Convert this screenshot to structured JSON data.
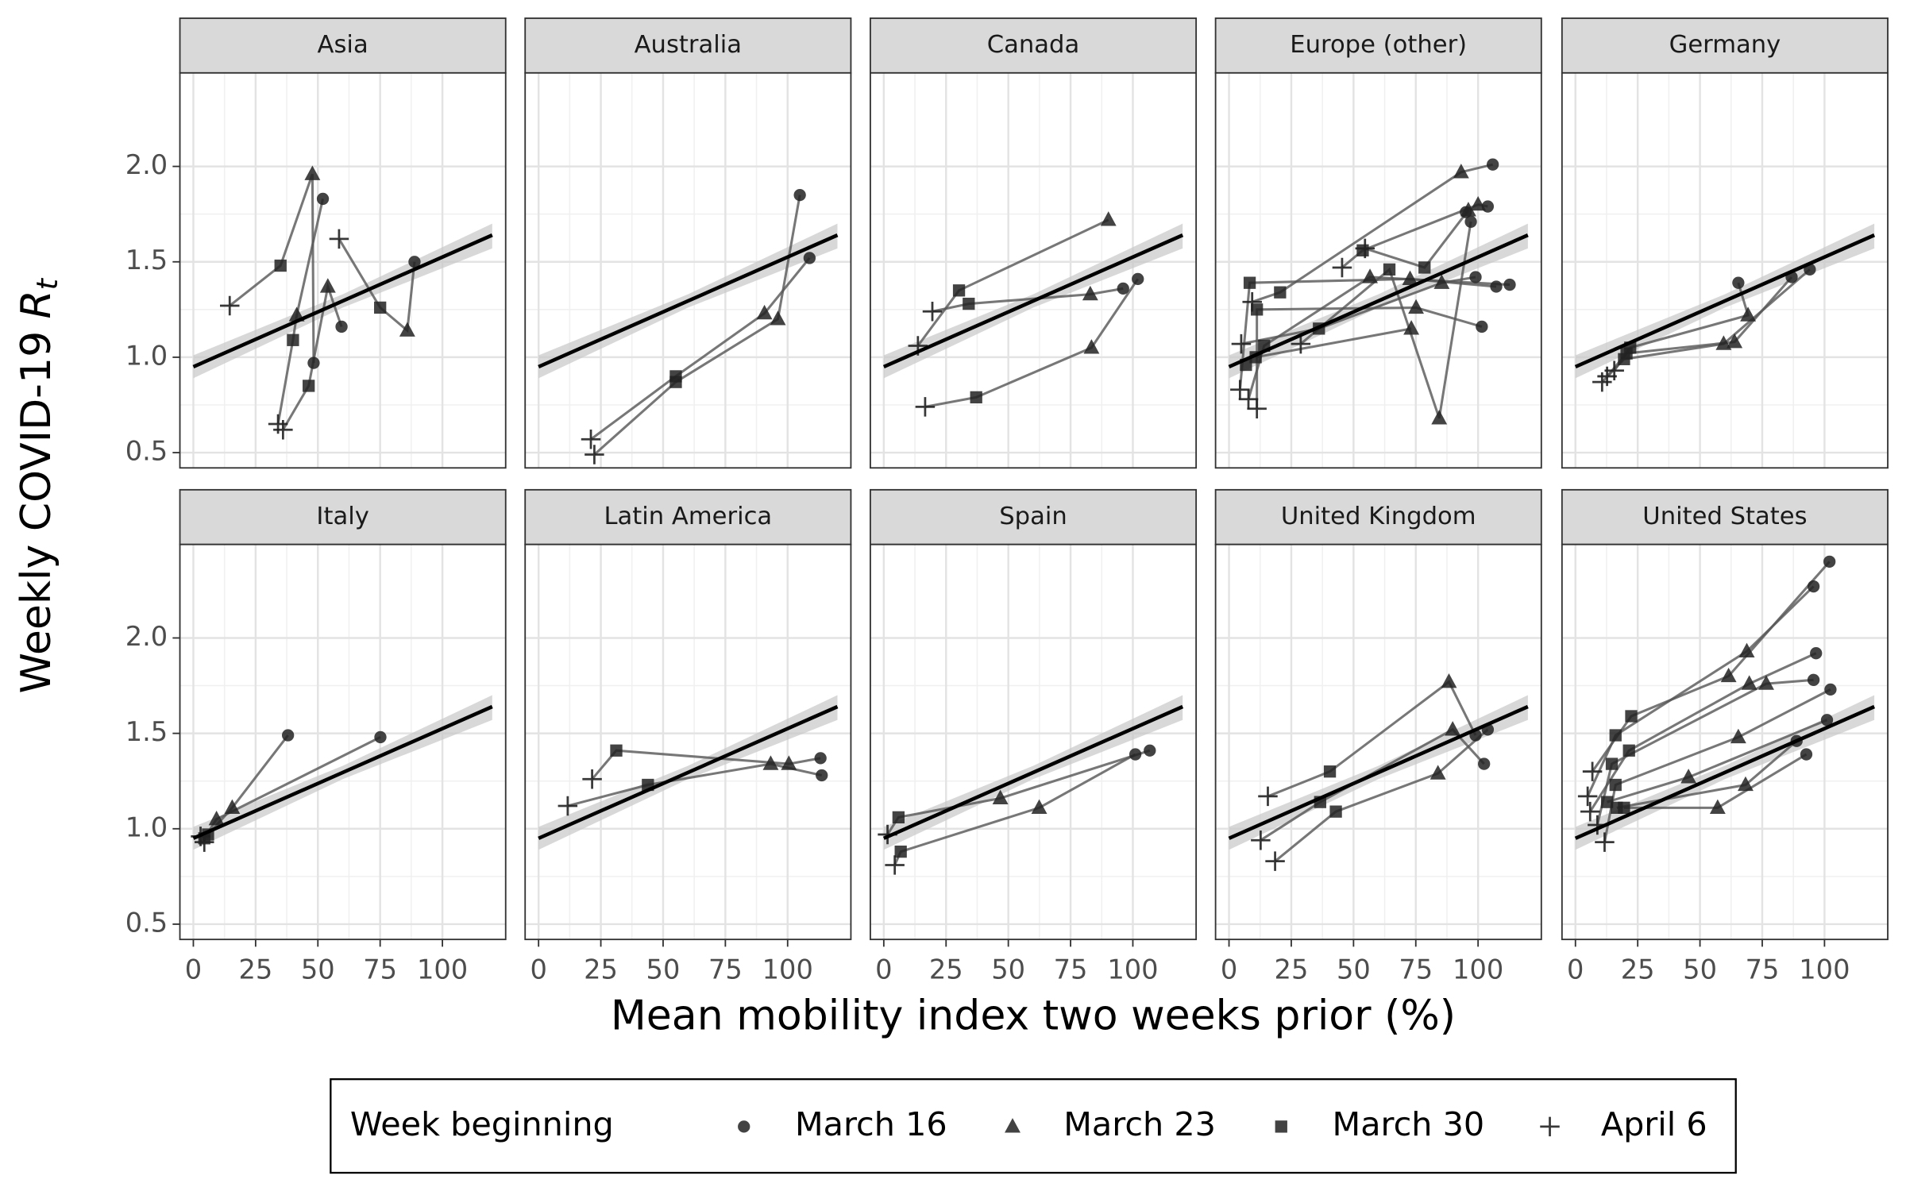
{
  "chart_data": {
    "type": "scatter",
    "y_label": "Weekly COVID-19",
    "y_label_symbol": "R",
    "y_label_subscript": "t",
    "x_label": "Mean mobility index two weeks prior (%)",
    "legend_title": "Week beginning",
    "weeks": [
      "March 16",
      "March 23",
      "March 30",
      "April 6"
    ],
    "shapes": [
      "circle",
      "triangle",
      "square",
      "plus"
    ],
    "point_color": "#222222",
    "line_color": "#555555",
    "fit_color": "#000000",
    "band_color": "#c8c8c8",
    "xlim": [
      -5.4,
      125.4
    ],
    "ylim": [
      0.42,
      2.49
    ],
    "xticks": [
      0,
      25,
      50,
      75,
      100
    ],
    "yticks": [
      0.5,
      {
        "value": 1,
        "label": "1.0"
      },
      1.5,
      {
        "value": 2,
        "label": "2.0"
      }
    ],
    "grid": true,
    "fit": {
      "x": [
        0,
        120
      ],
      "y": [
        0.95,
        1.64
      ]
    },
    "band": {
      "x": [
        0,
        60,
        120
      ],
      "lower": [
        0.89,
        1.26,
        1.57
      ],
      "upper": [
        1.01,
        1.33,
        1.7
      ]
    },
    "panels": [
      {
        "title": "Asia",
        "tracks": [
          {
            "x": [
              48.3,
              47.8,
              35,
              14.6
            ],
            "y": [
              0.97,
              1.96,
              1.48,
              1.27
            ]
          },
          {
            "x": [
              52,
              41.5,
              40,
              34
            ],
            "y": [
              1.83,
              1.22,
              1.09,
              0.65
            ]
          },
          {
            "x": [
              59.5,
              54,
              46.3,
              36
            ],
            "y": [
              1.16,
              1.37,
              0.85,
              0.62
            ]
          },
          {
            "x": [
              88.8,
              85.9,
              75,
              58.5
            ],
            "y": [
              1.5,
              1.14,
              1.26,
              1.62
            ]
          }
        ]
      },
      {
        "title": "Australia",
        "tracks": [
          {
            "x": [
              104.9,
              96.1,
              55.1,
              22.4
            ],
            "y": [
              1.85,
              1.2,
              0.87,
              0.49
            ]
          },
          {
            "x": [
              108.8,
              90.7,
              55.1,
              21
            ],
            "y": [
              1.52,
              1.23,
              0.9,
              0.57
            ]
          }
        ]
      },
      {
        "title": "Canada",
        "tracks": [
          {
            "x": [
              102,
              83.4,
              37.1,
              16.6
            ],
            "y": [
              1.41,
              1.05,
              0.79,
              0.74
            ]
          },
          {
            "x": [
              96.1,
              82.9,
              34.1,
              19.5
            ],
            "y": [
              1.36,
              1.33,
              1.28,
              1.24
            ]
          },
          {
            "x": [
              null,
              90.2,
              30.2,
              13.7
            ],
            "y": [
              null,
              1.72,
              1.35,
              1.06
            ]
          }
        ]
      },
      {
        "title": "Europe (other)",
        "tracks": [
          {
            "x": [
              105.9,
              93.2,
              20.5,
              9.3
            ],
            "y": [
              2.01,
              1.97,
              1.34,
              1.29
            ]
          },
          {
            "x": [
              95.1,
              96.1,
              78.5,
              54.6
            ],
            "y": [
              1.76,
              1.77,
              1.47,
              1.57
            ]
          },
          {
            "x": [
              103.9,
              100,
              53.7,
              45.4
            ],
            "y": [
              1.79,
              1.8,
              1.56,
              1.47
            ]
          },
          {
            "x": [
              97.1,
              84.4,
              64.4,
              28.8
            ],
            "y": [
              1.71,
              0.68,
              1.46,
              1.07
            ]
          },
          {
            "x": [
              99,
              85.4,
              36.1,
              4.9
            ],
            "y": [
              1.42,
              1.39,
              1.15,
              1.07
            ]
          },
          {
            "x": [
              107.3,
              72.7,
              8.3,
              4.4
            ],
            "y": [
              1.37,
              1.41,
              1.39,
              0.83
            ]
          },
          {
            "x": [
              112.7,
              56.6,
              14.1,
              7.8
            ],
            "y": [
              1.38,
              1.42,
              1.06,
              0.78
            ]
          },
          {
            "x": [
              101.5,
              75.1,
              11.2,
              11.2
            ],
            "y": [
              1.16,
              1.26,
              1.25,
              0.73
            ]
          },
          {
            "x": [
              null,
              73.2,
              10.7,
              null
            ],
            "y": [
              null,
              1.15,
              1.0,
              null
            ]
          },
          {
            "x": [
              null,
              null,
              6.8,
              null
            ],
            "y": [
              null,
              null,
              0.96,
              null
            ]
          }
        ]
      },
      {
        "title": "Germany",
        "tracks": [
          {
            "x": [
              65.4,
              69.3,
              22,
              15.6
            ],
            "y": [
              1.39,
              1.22,
              1.05,
              0.93
            ]
          },
          {
            "x": [
              86.8,
              63.9,
              20.5,
              12.7
            ],
            "y": [
              1.42,
              1.08,
              1.02,
              0.9
            ]
          },
          {
            "x": [
              94.1,
              59.5,
              19.5,
              10.7
            ],
            "y": [
              1.46,
              1.07,
              0.99,
              0.87
            ]
          }
        ]
      },
      {
        "title": "Italy",
        "tracks": [
          {
            "x": [
              38,
              15.6,
              5.9,
              2.9
            ],
            "y": [
              1.49,
              1.11,
              0.97,
              0.96
            ]
          },
          {
            "x": [
              75.1,
              9.3,
              4.4,
              4.4
            ],
            "y": [
              1.48,
              1.05,
              0.95,
              0.93
            ]
          }
        ]
      },
      {
        "title": "Latin America",
        "tracks": [
          {
            "x": [
              113.2,
              100.5,
              31.2,
              21.5
            ],
            "y": [
              1.37,
              1.34,
              1.41,
              1.26
            ]
          },
          {
            "x": [
              113.7,
              93.2,
              43.9,
              11.7
            ],
            "y": [
              1.28,
              1.34,
              1.23,
              1.12
            ]
          }
        ]
      },
      {
        "title": "Spain",
        "tracks": [
          {
            "x": [
              106.8,
              46.8,
              5.9,
              1.5
            ],
            "y": [
              1.41,
              1.16,
              1.06,
              0.97
            ]
          },
          {
            "x": [
              101,
              62.4,
              6.8,
              4.4
            ],
            "y": [
              1.39,
              1.11,
              0.88,
              0.81
            ]
          }
        ]
      },
      {
        "title": "United Kingdom",
        "tracks": [
          {
            "x": [
              99,
              88.3,
              40.5,
              15.6
            ],
            "y": [
              1.49,
              1.77,
              1.3,
              1.17
            ]
          },
          {
            "x": [
              103.9,
              83.9,
              42.9,
              18.5
            ],
            "y": [
              1.52,
              1.29,
              1.09,
              0.83
            ]
          },
          {
            "x": [
              102.4,
              89.8,
              36.6,
              12.7
            ],
            "y": [
              1.34,
              1.52,
              1.14,
              0.94
            ]
          }
        ]
      },
      {
        "title": "United States",
        "tracks": [
          {
            "x": [
              102,
              61.5,
              22.4,
              6.8
            ],
            "y": [
              2.4,
              1.8,
              1.59,
              1.3
            ]
          },
          {
            "x": [
              95.6,
              68.8,
              16.1,
              4.9
            ],
            "y": [
              2.27,
              1.93,
              1.49,
              1.17
            ]
          },
          {
            "x": [
              96.6,
              69.8,
              21.5,
              5.9
            ],
            "y": [
              1.92,
              1.76,
              1.41,
              1.09
            ]
          },
          {
            "x": [
              95.6,
              76.6,
              14.6,
              8.8
            ],
            "y": [
              1.78,
              1.76,
              1.34,
              1.02
            ]
          },
          {
            "x": [
              102.4,
              65.4,
              16.1,
              11.7
            ],
            "y": [
              1.73,
              1.48,
              1.23,
              0.93
            ]
          },
          {
            "x": [
              101,
              45.4,
              12.7,
              null
            ],
            "y": [
              1.57,
              1.27,
              1.14,
              null
            ]
          },
          {
            "x": [
              88.8,
              68.3,
              16.6,
              null
            ],
            "y": [
              1.46,
              1.23,
              1.11,
              null
            ]
          },
          {
            "x": [
              92.7,
              57.1,
              19.5,
              null
            ],
            "y": [
              1.39,
              1.11,
              1.11,
              null
            ]
          }
        ]
      }
    ]
  }
}
